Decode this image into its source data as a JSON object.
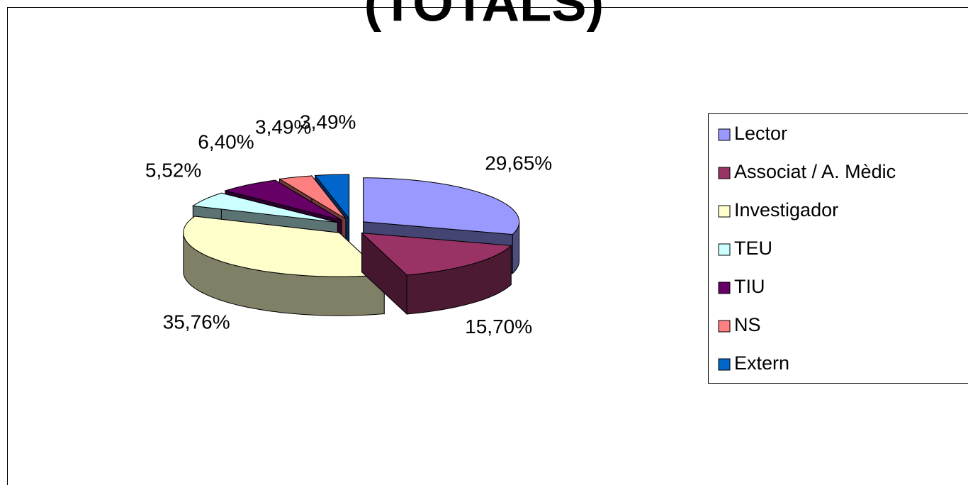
{
  "chart_data": {
    "type": "pie3d",
    "title": "(TOTALS)",
    "categories": [
      "Lector",
      "Associat / A. Mèdic",
      "Investigador",
      "TEU",
      "TIU",
      "NS",
      "Extern"
    ],
    "values": [
      29.65,
      15.7,
      35.76,
      5.52,
      6.4,
      3.49,
      3.49
    ],
    "value_labels": [
      "29,65%",
      "15,70%",
      "35,76%",
      "5,52%",
      "6,40%",
      "3,49%",
      "3,49%"
    ],
    "colors": [
      "#9999ff",
      "#993366",
      "#ffffcc",
      "#ccffff",
      "#660066",
      "#ff8080",
      "#0066cc"
    ],
    "legend": "right"
  }
}
